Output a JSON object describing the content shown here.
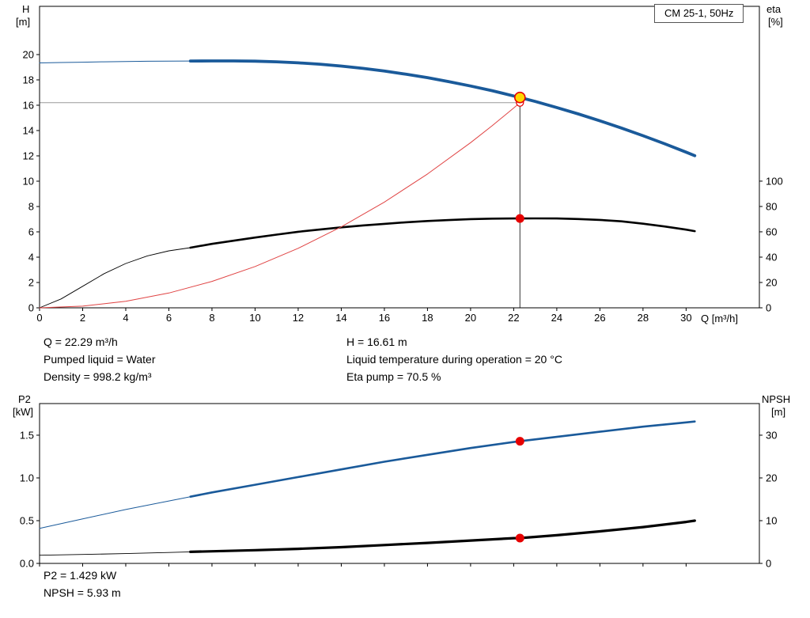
{
  "header": {
    "model": "CM 25-1, 50Hz"
  },
  "labels": {
    "h_title": "H",
    "h_unit": "[m]",
    "eta_title": "eta",
    "eta_unit": "[%]",
    "q_title": "Q [m³/h]",
    "p2_title": "P2",
    "p2_unit": "[kW]",
    "npsh_title": "NPSH",
    "npsh_unit": "[m]"
  },
  "annotations": {
    "q": "Q = 22.29 m³/h",
    "pumped_liquid": "Pumped liquid = Water",
    "density": "Density = 998.2 kg/m³",
    "h": "H = 16.61 m",
    "liquid_temp": "Liquid temperature during operation = 20 °C",
    "eta_pump": "Eta pump = 70.5 %",
    "p2": "P2 = 1.429 kW",
    "npsh": "NPSH = 5.93 m"
  },
  "colors": {
    "curve_blue": "#1a5a9a",
    "curve_black": "#000000",
    "curve_red": "#e04444",
    "marker_red": "#e60000",
    "duty_fill": "#ffd800",
    "guide_dark": "#333333",
    "guide_gray": "#999999"
  },
  "chart_data": [
    {
      "id": "hq-eta-chart",
      "layout": "hq",
      "type": "line",
      "title": "CM 25-1, 50Hz",
      "x_axis": {
        "label": "Q [m³/h]",
        "min": 0,
        "max": 33.4,
        "ticks": [
          0,
          2,
          4,
          6,
          8,
          10,
          12,
          14,
          16,
          18,
          20,
          22,
          24,
          26,
          28,
          30
        ],
        "tick_labels": [
          "0",
          "2",
          "4",
          "6",
          "8",
          "10",
          "12",
          "14",
          "16",
          "18",
          "20",
          "22",
          "24",
          "26",
          "28",
          "30"
        ]
      },
      "y_left": {
        "label": "H [m]",
        "min": 0,
        "max": 23.81,
        "ticks": [
          0,
          2,
          4,
          6,
          8,
          10,
          12,
          14,
          16,
          18,
          20
        ],
        "tick_labels": [
          "0",
          "2",
          "4",
          "6",
          "8",
          "10",
          "12",
          "14",
          "16",
          "18",
          "20"
        ]
      },
      "y_right": {
        "label": "eta [%]",
        "min": 0,
        "max": 238,
        "ticks": [
          0,
          20,
          40,
          60,
          80,
          100
        ],
        "tick_labels": [
          "0",
          "20",
          "40",
          "60",
          "80",
          "100"
        ]
      },
      "series": [
        {
          "name": "pump-curve",
          "axis": "left",
          "color_key": "curve_blue",
          "thin_until": 7,
          "thin_width": 1,
          "thick_width": 3.8,
          "points": [
            [
              0,
              19.34
            ],
            [
              1,
              19.37
            ],
            [
              2,
              19.4
            ],
            [
              3,
              19.43
            ],
            [
              4,
              19.45
            ],
            [
              5,
              19.47
            ],
            [
              6,
              19.48
            ],
            [
              7,
              19.49
            ],
            [
              8,
              19.5
            ],
            [
              9,
              19.5
            ],
            [
              10,
              19.48
            ],
            [
              11,
              19.43
            ],
            [
              12,
              19.35
            ],
            [
              13,
              19.24
            ],
            [
              14,
              19.09
            ],
            [
              15,
              18.91
            ],
            [
              16,
              18.7
            ],
            [
              17,
              18.45
            ],
            [
              18,
              18.18
            ],
            [
              19,
              17.86
            ],
            [
              20,
              17.52
            ],
            [
              21,
              17.15
            ],
            [
              22,
              16.73
            ],
            [
              22.29,
              16.61
            ],
            [
              23,
              16.3
            ],
            [
              24,
              15.82
            ],
            [
              25,
              15.31
            ],
            [
              26,
              14.77
            ],
            [
              27,
              14.2
            ],
            [
              28,
              13.59
            ],
            [
              29,
              12.96
            ],
            [
              30,
              12.29
            ],
            [
              30.4,
              12.01
            ]
          ]
        },
        {
          "name": "efficiency-curve",
          "axis": "right",
          "color_key": "curve_black",
          "thin_until": 7,
          "thin_width": 0.9,
          "thick_width": 2.6,
          "points": [
            [
              0,
              0
            ],
            [
              1,
              7
            ],
            [
              2,
              17
            ],
            [
              3,
              27
            ],
            [
              4,
              35
            ],
            [
              5,
              41
            ],
            [
              6,
              45
            ],
            [
              7,
              47.5
            ],
            [
              8,
              50.5
            ],
            [
              9,
              53
            ],
            [
              10,
              55.5
            ],
            [
              11,
              57.8
            ],
            [
              12,
              60
            ],
            [
              13,
              61.8
            ],
            [
              14,
              63.5
            ],
            [
              15,
              65
            ],
            [
              16,
              66.3
            ],
            [
              17,
              67.5
            ],
            [
              18,
              68.5
            ],
            [
              19,
              69.3
            ],
            [
              20,
              70
            ],
            [
              21,
              70.4
            ],
            [
              22,
              70.5
            ],
            [
              22.29,
              70.5
            ],
            [
              23,
              70.6
            ],
            [
              24,
              70.5
            ],
            [
              25,
              70.1
            ],
            [
              26,
              69.4
            ],
            [
              27,
              68.3
            ],
            [
              28,
              66.4
            ],
            [
              29,
              64.2
            ],
            [
              30,
              61.7
            ],
            [
              30.4,
              60.5
            ]
          ]
        },
        {
          "name": "system-curve",
          "axis": "left",
          "color_key": "curve_red",
          "thin_until": 99,
          "thin_width": 1,
          "thick_width": 1,
          "points": [
            [
              0,
              0
            ],
            [
              2,
              0.13
            ],
            [
              4,
              0.52
            ],
            [
              6,
              1.17
            ],
            [
              8,
              2.09
            ],
            [
              10,
              3.26
            ],
            [
              12,
              4.7
            ],
            [
              14,
              6.39
            ],
            [
              16,
              8.35
            ],
            [
              18,
              10.57
            ],
            [
              20,
              13.04
            ],
            [
              21,
              14.38
            ],
            [
              22,
              15.78
            ],
            [
              22.29,
              16.2
            ]
          ]
        }
      ],
      "guides": [
        {
          "type": "h",
          "axis": "left",
          "y": 16.2,
          "x_from": 0,
          "x_to": 22.29,
          "color_key": "guide_gray",
          "width": 1
        },
        {
          "type": "v",
          "axis": "left",
          "x": 22.29,
          "y_from": 0,
          "y_to": 16.61,
          "color_key": "guide_dark",
          "width": 1
        }
      ],
      "markers": [
        {
          "name": "requested-duty-point",
          "x": 22.29,
          "y": 16.2,
          "axis": "left",
          "style": "open"
        },
        {
          "name": "eta-duty-point",
          "x": 22.29,
          "y": 70.5,
          "axis": "right",
          "style": "dot"
        },
        {
          "name": "duty-point",
          "x": 22.29,
          "y": 16.61,
          "axis": "left",
          "style": "duty"
        }
      ]
    },
    {
      "id": "p2-npsh-chart",
      "layout": "pn",
      "type": "line",
      "title": "",
      "x_axis": {
        "label": "Q [m³/h]",
        "min": 0,
        "max": 33.4,
        "ticks": [
          0,
          2,
          4,
          6,
          8,
          10,
          12,
          14,
          16,
          18,
          20,
          22,
          24,
          26,
          28,
          30
        ],
        "tick_labels": null
      },
      "y_left": {
        "label": "P2 [kW]",
        "min": 0,
        "max": 1.87,
        "ticks": [
          0,
          0.5,
          1,
          1.5
        ],
        "tick_labels": [
          "0.0",
          "0.5",
          "1.0",
          "1.5"
        ]
      },
      "y_right": {
        "label": "NPSH [m]",
        "min": 0,
        "max": 37.4,
        "ticks": [
          0,
          10,
          20,
          30
        ],
        "tick_labels": [
          "0",
          "10",
          "20",
          "30"
        ]
      },
      "series": [
        {
          "name": "p2-curve",
          "axis": "left",
          "color_key": "curve_blue",
          "thin_until": 7,
          "thin_width": 1,
          "thick_width": 2.6,
          "points": [
            [
              0,
              0.41
            ],
            [
              2,
              0.52
            ],
            [
              4,
              0.63
            ],
            [
              6,
              0.73
            ],
            [
              7,
              0.78
            ],
            [
              8,
              0.83
            ],
            [
              10,
              0.92
            ],
            [
              12,
              1.01
            ],
            [
              14,
              1.1
            ],
            [
              16,
              1.19
            ],
            [
              18,
              1.27
            ],
            [
              20,
              1.35
            ],
            [
              22,
              1.42
            ],
            [
              22.29,
              1.429
            ],
            [
              24,
              1.48
            ],
            [
              26,
              1.54
            ],
            [
              28,
              1.6
            ],
            [
              30,
              1.65
            ],
            [
              30.4,
              1.66
            ]
          ]
        },
        {
          "name": "npsh-curve",
          "axis": "right",
          "color_key": "curve_black",
          "thin_until": 7,
          "thin_width": 0.9,
          "thick_width": 3.2,
          "points": [
            [
              0,
              1.9
            ],
            [
              2,
              2.1
            ],
            [
              4,
              2.3
            ],
            [
              6,
              2.55
            ],
            [
              7,
              2.7
            ],
            [
              10,
              3.1
            ],
            [
              12,
              3.4
            ],
            [
              14,
              3.8
            ],
            [
              16,
              4.3
            ],
            [
              18,
              4.8
            ],
            [
              20,
              5.35
            ],
            [
              22,
              5.9
            ],
            [
              22.29,
              5.93
            ],
            [
              24,
              6.6
            ],
            [
              26,
              7.5
            ],
            [
              28,
              8.5
            ],
            [
              30,
              9.7
            ],
            [
              30.4,
              10.0
            ]
          ]
        }
      ],
      "guides": [],
      "markers": [
        {
          "name": "p2-duty-point",
          "x": 22.29,
          "y": 1.429,
          "axis": "left",
          "style": "dot"
        },
        {
          "name": "npsh-duty-point",
          "x": 22.29,
          "y": 5.93,
          "axis": "right",
          "style": "dot"
        }
      ]
    }
  ]
}
